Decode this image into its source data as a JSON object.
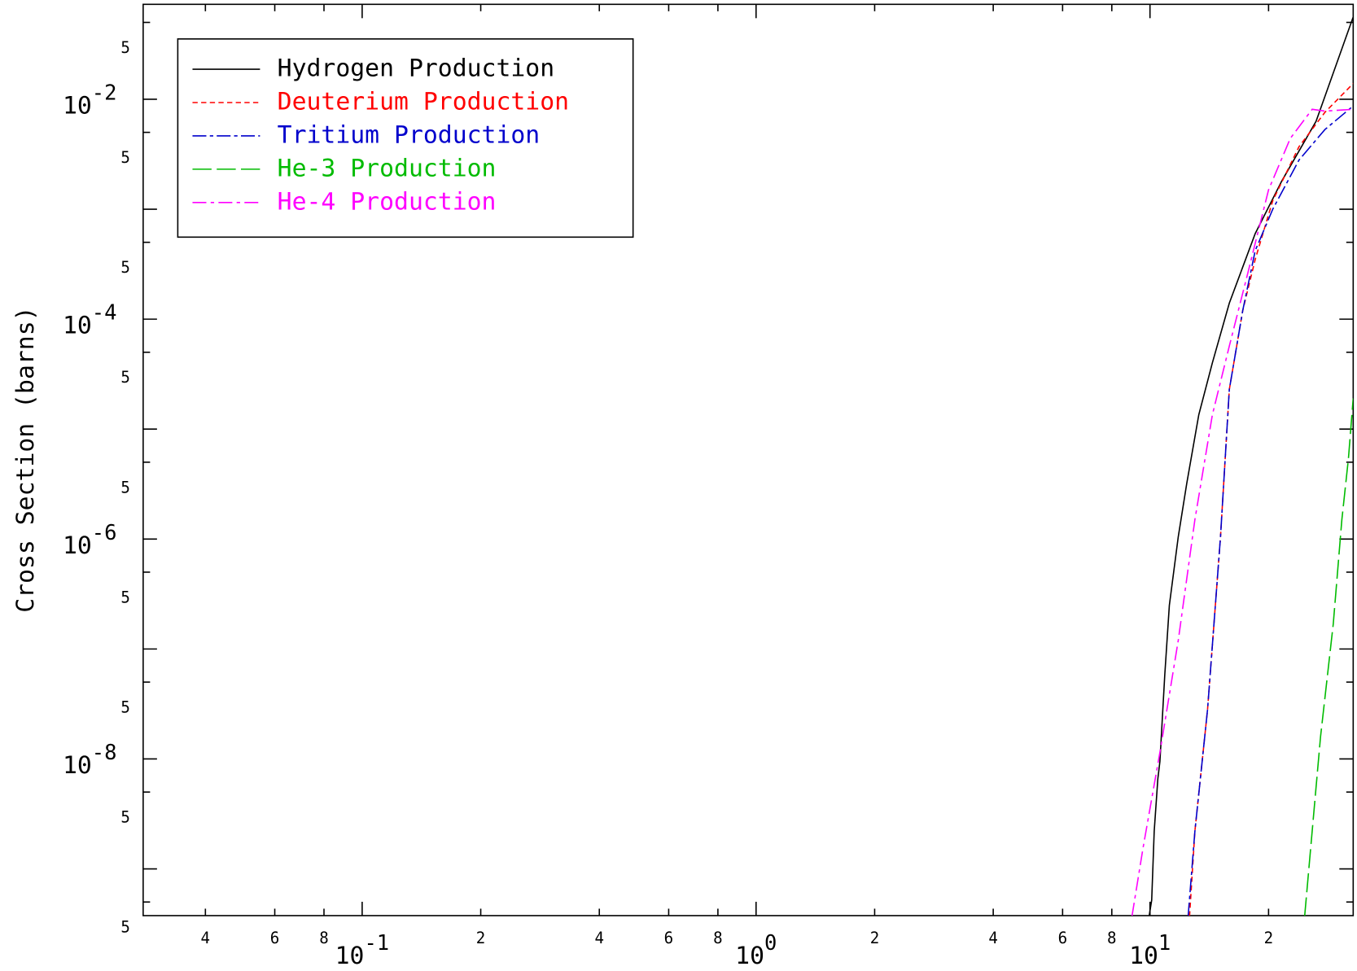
{
  "chart_data": {
    "type": "line",
    "y_label": "Cross Section (barns)",
    "xscale": "log",
    "yscale": "log",
    "xlim": [
      0.0278,
      32.8
    ],
    "ylim": [
      3.76e-10,
      0.073
    ],
    "xticks": [
      {
        "value": 0.04,
        "label": "4"
      },
      {
        "value": 0.06,
        "label": "6"
      },
      {
        "value": 0.08,
        "label": "8"
      },
      {
        "value": 0.1,
        "label": "10",
        "exponent": "-1"
      },
      {
        "value": 0.2,
        "label": "2"
      },
      {
        "value": 0.4,
        "label": "4"
      },
      {
        "value": 0.6,
        "label": "6"
      },
      {
        "value": 0.8,
        "label": "8"
      },
      {
        "value": 1,
        "label": "10",
        "exponent": "0"
      },
      {
        "value": 2,
        "label": "2"
      },
      {
        "value": 4,
        "label": "4"
      },
      {
        "value": 6,
        "label": "6"
      },
      {
        "value": 8,
        "label": "8"
      },
      {
        "value": 10,
        "label": "10",
        "exponent": "1"
      },
      {
        "value": 20,
        "label": "2"
      }
    ],
    "yticks": [
      {
        "value": 0.05,
        "label": "5"
      },
      {
        "value": 0.01,
        "label": "10",
        "exponent": "-2"
      },
      {
        "value": 0.005,
        "label": "5"
      },
      {
        "value": 0.0005,
        "label": "5"
      },
      {
        "value": 0.0001,
        "label": "10",
        "exponent": "-4"
      },
      {
        "value": 5e-05,
        "label": "5"
      },
      {
        "value": 5e-06,
        "label": "5"
      },
      {
        "value": 1e-06,
        "label": "10",
        "exponent": "-6"
      },
      {
        "value": 5e-07,
        "label": "5"
      },
      {
        "value": 5e-08,
        "label": "5"
      },
      {
        "value": 1e-08,
        "label": "10",
        "exponent": "-8"
      },
      {
        "value": 5e-09,
        "label": "5"
      },
      {
        "value": 5e-10,
        "label": "5"
      }
    ],
    "yticks_unlabeled": [
      0.001,
      1e-05,
      1e-07,
      1e-09
    ],
    "series": [
      {
        "name": "Hydrogen Production",
        "color": "#000000",
        "dash": "none",
        "x": [
          9.95,
          10.1,
          10.25,
          10.47,
          10.6,
          10.9,
          11.2,
          11.8,
          12.4,
          13.3,
          14.4,
          15.9,
          18.5,
          21.6,
          26.4,
          32.8
        ],
        "values": [
          3.7e-10,
          5.2e-10,
          2.2e-09,
          6.6e-09,
          9.5e-09,
          5.8e-08,
          2.5e-07,
          1.05e-06,
          3.2e-06,
          1.35e-05,
          4e-05,
          0.00014,
          0.0006,
          0.0018,
          0.0063,
          0.056
        ]
      },
      {
        "name": "Deuterium Production",
        "color": "#ff0000",
        "dash": "6,4",
        "x": [
          12.6,
          13.0,
          14.0,
          15.1,
          15.9,
          17.2,
          18.5,
          20.5,
          23.9,
          27.8,
          32.8
        ],
        "values": [
          3.7e-10,
          2.2e-09,
          2.8e-08,
          1.05e-06,
          2.3e-05,
          0.00012,
          0.00035,
          0.0012,
          0.0037,
          0.0076,
          0.0139
        ]
      },
      {
        "name": "Tritium Production",
        "color": "#0000cc",
        "dash": "16,4,4,4",
        "x": [
          12.5,
          13.0,
          14.0,
          15.1,
          15.9,
          17.2,
          18.5,
          20.5,
          23.9,
          27.8,
          32.8
        ],
        "values": [
          3.7e-10,
          2.2e-09,
          2.8e-08,
          1.05e-06,
          2.3e-05,
          0.00012,
          0.00042,
          0.001,
          0.0028,
          0.0053,
          0.0087
        ]
      },
      {
        "name": "He-3 Production",
        "color": "#00bb00",
        "dash": "22,6",
        "x": [
          24.7,
          25.8,
          27.1,
          29.2,
          30.7,
          31.9,
          32.8
        ],
        "values": [
          3.7e-10,
          2.2e-09,
          1.6e-08,
          1.7e-07,
          1.5e-06,
          5.4e-06,
          1.9e-05
        ]
      },
      {
        "name": "He-4 Production",
        "color": "#ff00ff",
        "dash": "16,5,4,5",
        "x": [
          9.0,
          9.6,
          10.6,
          11.8,
          13.0,
          14.4,
          15.9,
          17.6,
          20.0,
          22.7,
          25.8,
          27.8,
          32.8
        ],
        "values": [
          3.7e-10,
          1.55e-09,
          1.15e-08,
          1.2e-07,
          1.5e-06,
          1.35e-05,
          5.7e-05,
          0.00024,
          0.0015,
          0.0044,
          0.0081,
          0.0078,
          0.0081
        ]
      }
    ]
  }
}
